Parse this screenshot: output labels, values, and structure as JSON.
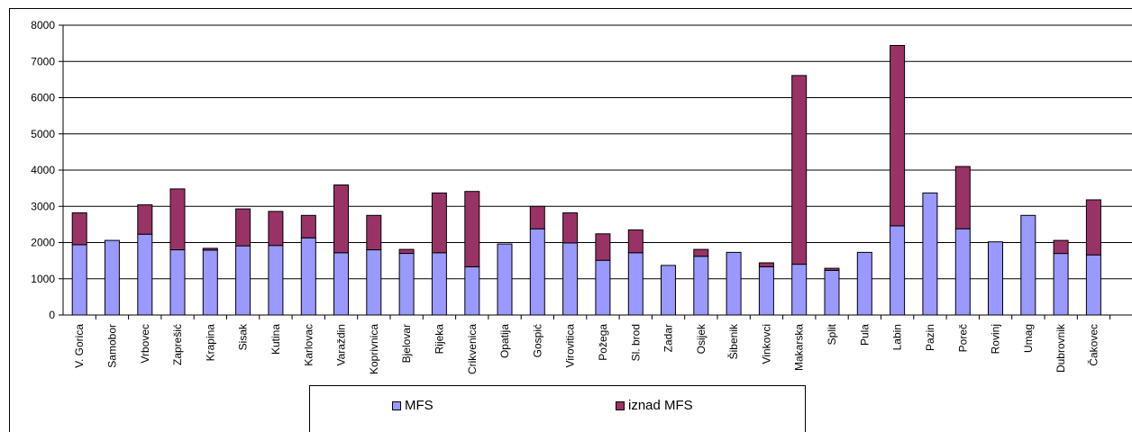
{
  "chart_data": {
    "type": "bar",
    "stacked": true,
    "categories": [
      "V. Gorica",
      "Samobor",
      "Vrbovec",
      "Zaprešić",
      "Krapina",
      "Sisak",
      "Kutina",
      "Karlovac",
      "Varaždin",
      "Koprivnica",
      "Bjelovar",
      "Rijeka",
      "Crikvenica",
      "Opatija",
      "Gospić",
      "Virovitica",
      "Požega",
      "Sl. brod",
      "Zadar",
      "Osijek",
      "Šibenik",
      "Vinkovci",
      "Makarska",
      "Split",
      "Pula",
      "Labin",
      "Pazin",
      "Poreč",
      "Rovinj",
      "Umag",
      "Dubrovnik",
      "Čakovec"
    ],
    "series": [
      {
        "name": "MFS",
        "color": "#9999ff",
        "values": [
          1940,
          2060,
          2230,
          1800,
          1790,
          1910,
          1920,
          2130,
          1720,
          1800,
          1700,
          1720,
          1330,
          1960,
          2380,
          1990,
          1510,
          1720,
          1370,
          1620,
          1730,
          1330,
          1400,
          1230,
          1730,
          2460,
          3370,
          2380,
          2020,
          2750,
          1700,
          1660
        ]
      },
      {
        "name": "iznad MFS",
        "color": "#993366",
        "values": [
          880,
          0,
          810,
          1680,
          50,
          1020,
          940,
          620,
          1870,
          950,
          110,
          1650,
          2080,
          0,
          620,
          830,
          730,
          630,
          0,
          190,
          0,
          110,
          5210,
          60,
          0,
          4980,
          0,
          1720,
          0,
          0,
          360,
          1520
        ]
      }
    ],
    "ylim": [
      0,
      8000
    ],
    "yticks": [
      "0",
      "1000",
      "2000",
      "3000",
      "4000",
      "5000",
      "6000",
      "7000",
      "8000"
    ],
    "grid": true,
    "legend_position": "bottom"
  }
}
